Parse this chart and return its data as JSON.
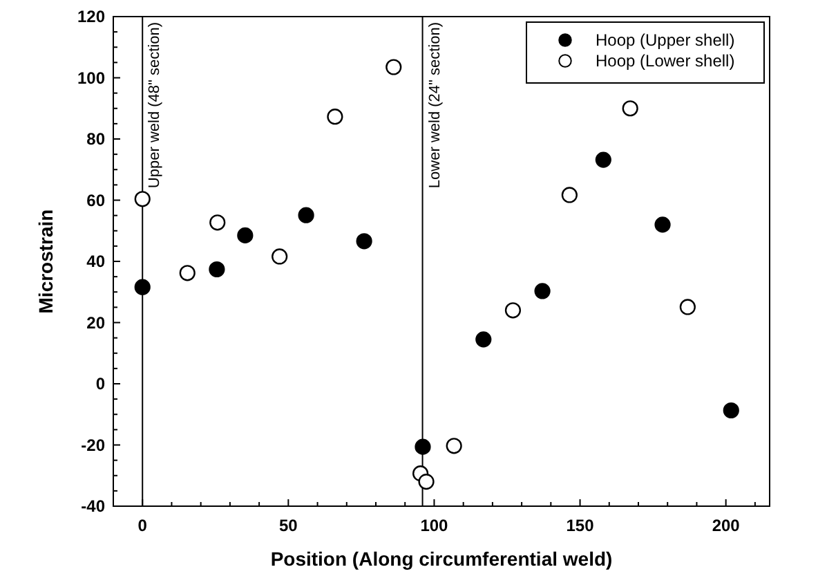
{
  "chart_data": {
    "type": "scatter",
    "xlabel": "Position (Along circumferential weld)",
    "ylabel": "Microstrain",
    "xlim": [
      -10,
      215
    ],
    "xticks": [
      0,
      {
        "value": 10,
        "label": null
      },
      {
        "value": 20,
        "label": null
      },
      {
        "value": 30,
        "label": null
      },
      {
        "value": 40,
        "label": null
      },
      50,
      {
        "value": 60,
        "label": null
      },
      {
        "value": 70,
        "label": null
      },
      {
        "value": 80,
        "label": null
      },
      {
        "value": 90,
        "label": null
      },
      100,
      {
        "value": 110,
        "label": null
      },
      {
        "value": 120,
        "label": null
      },
      {
        "value": 130,
        "label": null
      },
      {
        "value": 140,
        "label": null
      },
      150,
      {
        "value": 160,
        "label": null
      },
      {
        "value": 170,
        "label": null
      },
      {
        "value": 180,
        "label": null
      },
      {
        "value": 190,
        "label": null
      },
      200,
      {
        "value": 210,
        "label": null
      }
    ],
    "ylim": [
      -40,
      120
    ],
    "yticks": [
      -40,
      {
        "value": -35,
        "label": null
      },
      {
        "value": -30,
        "label": null
      },
      {
        "value": -25,
        "label": null
      },
      -20,
      {
        "value": -15,
        "label": null
      },
      {
        "value": -10,
        "label": null
      },
      {
        "value": -5,
        "label": null
      },
      0,
      {
        "value": 5,
        "label": null
      },
      {
        "value": 10,
        "label": null
      },
      {
        "value": 15,
        "label": null
      },
      20,
      {
        "value": 25,
        "label": null
      },
      {
        "value": 30,
        "label": null
      },
      {
        "value": 35,
        "label": null
      },
      40,
      {
        "value": 45,
        "label": null
      },
      {
        "value": 50,
        "label": null
      },
      {
        "value": 55,
        "label": null
      },
      60,
      {
        "value": 65,
        "label": null
      },
      {
        "value": 70,
        "label": null
      },
      {
        "value": 75,
        "label": null
      },
      80,
      {
        "value": 85,
        "label": null
      },
      {
        "value": 90,
        "label": null
      },
      {
        "value": 95,
        "label": null
      },
      100,
      {
        "value": 105,
        "label": null
      },
      {
        "value": 110,
        "label": null
      },
      {
        "value": 115,
        "label": null
      },
      120
    ],
    "grid": false,
    "legend": "top right",
    "marker": "circle",
    "ref_lines": [
      {
        "axis": "x",
        "value": 0,
        "label": "Upper weld (48\" section)"
      },
      {
        "axis": "x",
        "value": 96,
        "label": "Lower weld (24\" section)"
      }
    ],
    "series": [
      {
        "name": "Hoop (Upper shell)",
        "color": "#000000",
        "x": [
          0,
          25.5,
          35.2,
          56.1,
          76,
          96.1,
          116.9,
          137.1,
          158,
          178.3,
          201.8
        ],
        "values": [
          31.6,
          37.4,
          48.5,
          55.1,
          46.6,
          -20.6,
          14.5,
          30.3,
          73.2,
          52,
          -8.7
        ]
      },
      {
        "name": "Hoop (Lower shell)",
        "color": "#ffffff",
        "x": [
          0,
          15.4,
          25.7,
          47,
          66,
          86.1,
          95.3,
          97.3,
          106.8,
          127,
          146.4,
          167.2,
          186.9
        ],
        "values": [
          60.4,
          36.2,
          52.7,
          41.6,
          87.3,
          103.5,
          -29.3,
          -32,
          -20.3,
          24,
          61.7,
          90,
          25.1
        ]
      }
    ]
  }
}
